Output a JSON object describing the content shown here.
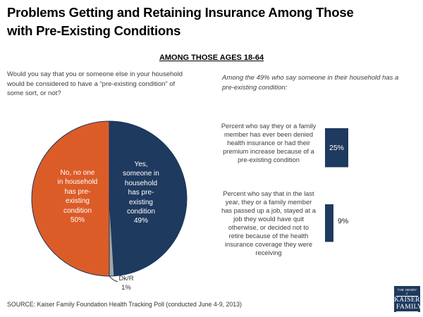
{
  "page": {
    "title": "Problems Getting and Retaining Insurance Among Those\nwith Pre-Existing Conditions",
    "subtitle": "AMONG THOSE AGES 18-64",
    "question": "Would you say that you or someone else in your household\nwould be considered to have a “pre-existing condition” of\nsome sort, or not?",
    "intro_right": "Among the 49% who say someone in their household has a\npre-existing condition:",
    "source": "SOURCE: Kaiser Family Foundation Health Tracking Poll (conducted June 4-9, 2013)"
  },
  "colors": {
    "navy": "#1F3A5F",
    "orange": "#DC5C28",
    "gray": "#A6A6A6",
    "slice_stroke": "#16365C"
  },
  "pie_display": {
    "yes_label": "Yes,\nsomeone in\nhousehold\nhas pre-\nexisting\ncondition\n49%",
    "no_label": "No, no one\nin household\nhas pre-\nexisting\ncondition\n50%",
    "dkr_label": "Dk/R\n1%"
  },
  "bars_display": {
    "label1": "Percent who say they or a family\nmember has ever been denied\nhealth insurance or had their\npremium increase because of a\npre-existing condition",
    "label2": "Percent who say that in the last\nyear, they or a family member\nhas passed up a job, stayed at a\njob they would have quit\notherwise, or decided not to\nretire because of the health\ninsurance coverage they were\nreceiving",
    "value1": "25%",
    "value2": "9%"
  },
  "logo": {
    "line1": "THE HENRY J.",
    "line2": "KAISER",
    "line3": "FAMILY",
    "line4": "FOUNDATION"
  },
  "chart_data": [
    {
      "type": "pie",
      "slices": [
        {
          "label": "Yes, someone in household has pre-existing condition",
          "value": 49,
          "color": "#1F3A5F"
        },
        {
          "label": "Dk/R",
          "value": 1,
          "color": "#A6A6A6"
        },
        {
          "label": "No, no one in household has pre-existing condition",
          "value": 50,
          "color": "#DC5C28"
        }
      ],
      "start": "top, clockwise"
    },
    {
      "type": "bar",
      "orientation": "horizontal",
      "categories": [
        "Percent who say they or a family member has ever been denied health insurance or had their premium increase because of a pre-existing condition",
        "Percent who say that in the last year, they or a family member has passed up a job, stayed at a job they would have quit otherwise, or decided not to retire because of the health insurance coverage they were receiving"
      ],
      "values": [
        25,
        9
      ],
      "value_labels": [
        "25%",
        "9%"
      ],
      "bar_color": "#1F3A5F"
    }
  ]
}
